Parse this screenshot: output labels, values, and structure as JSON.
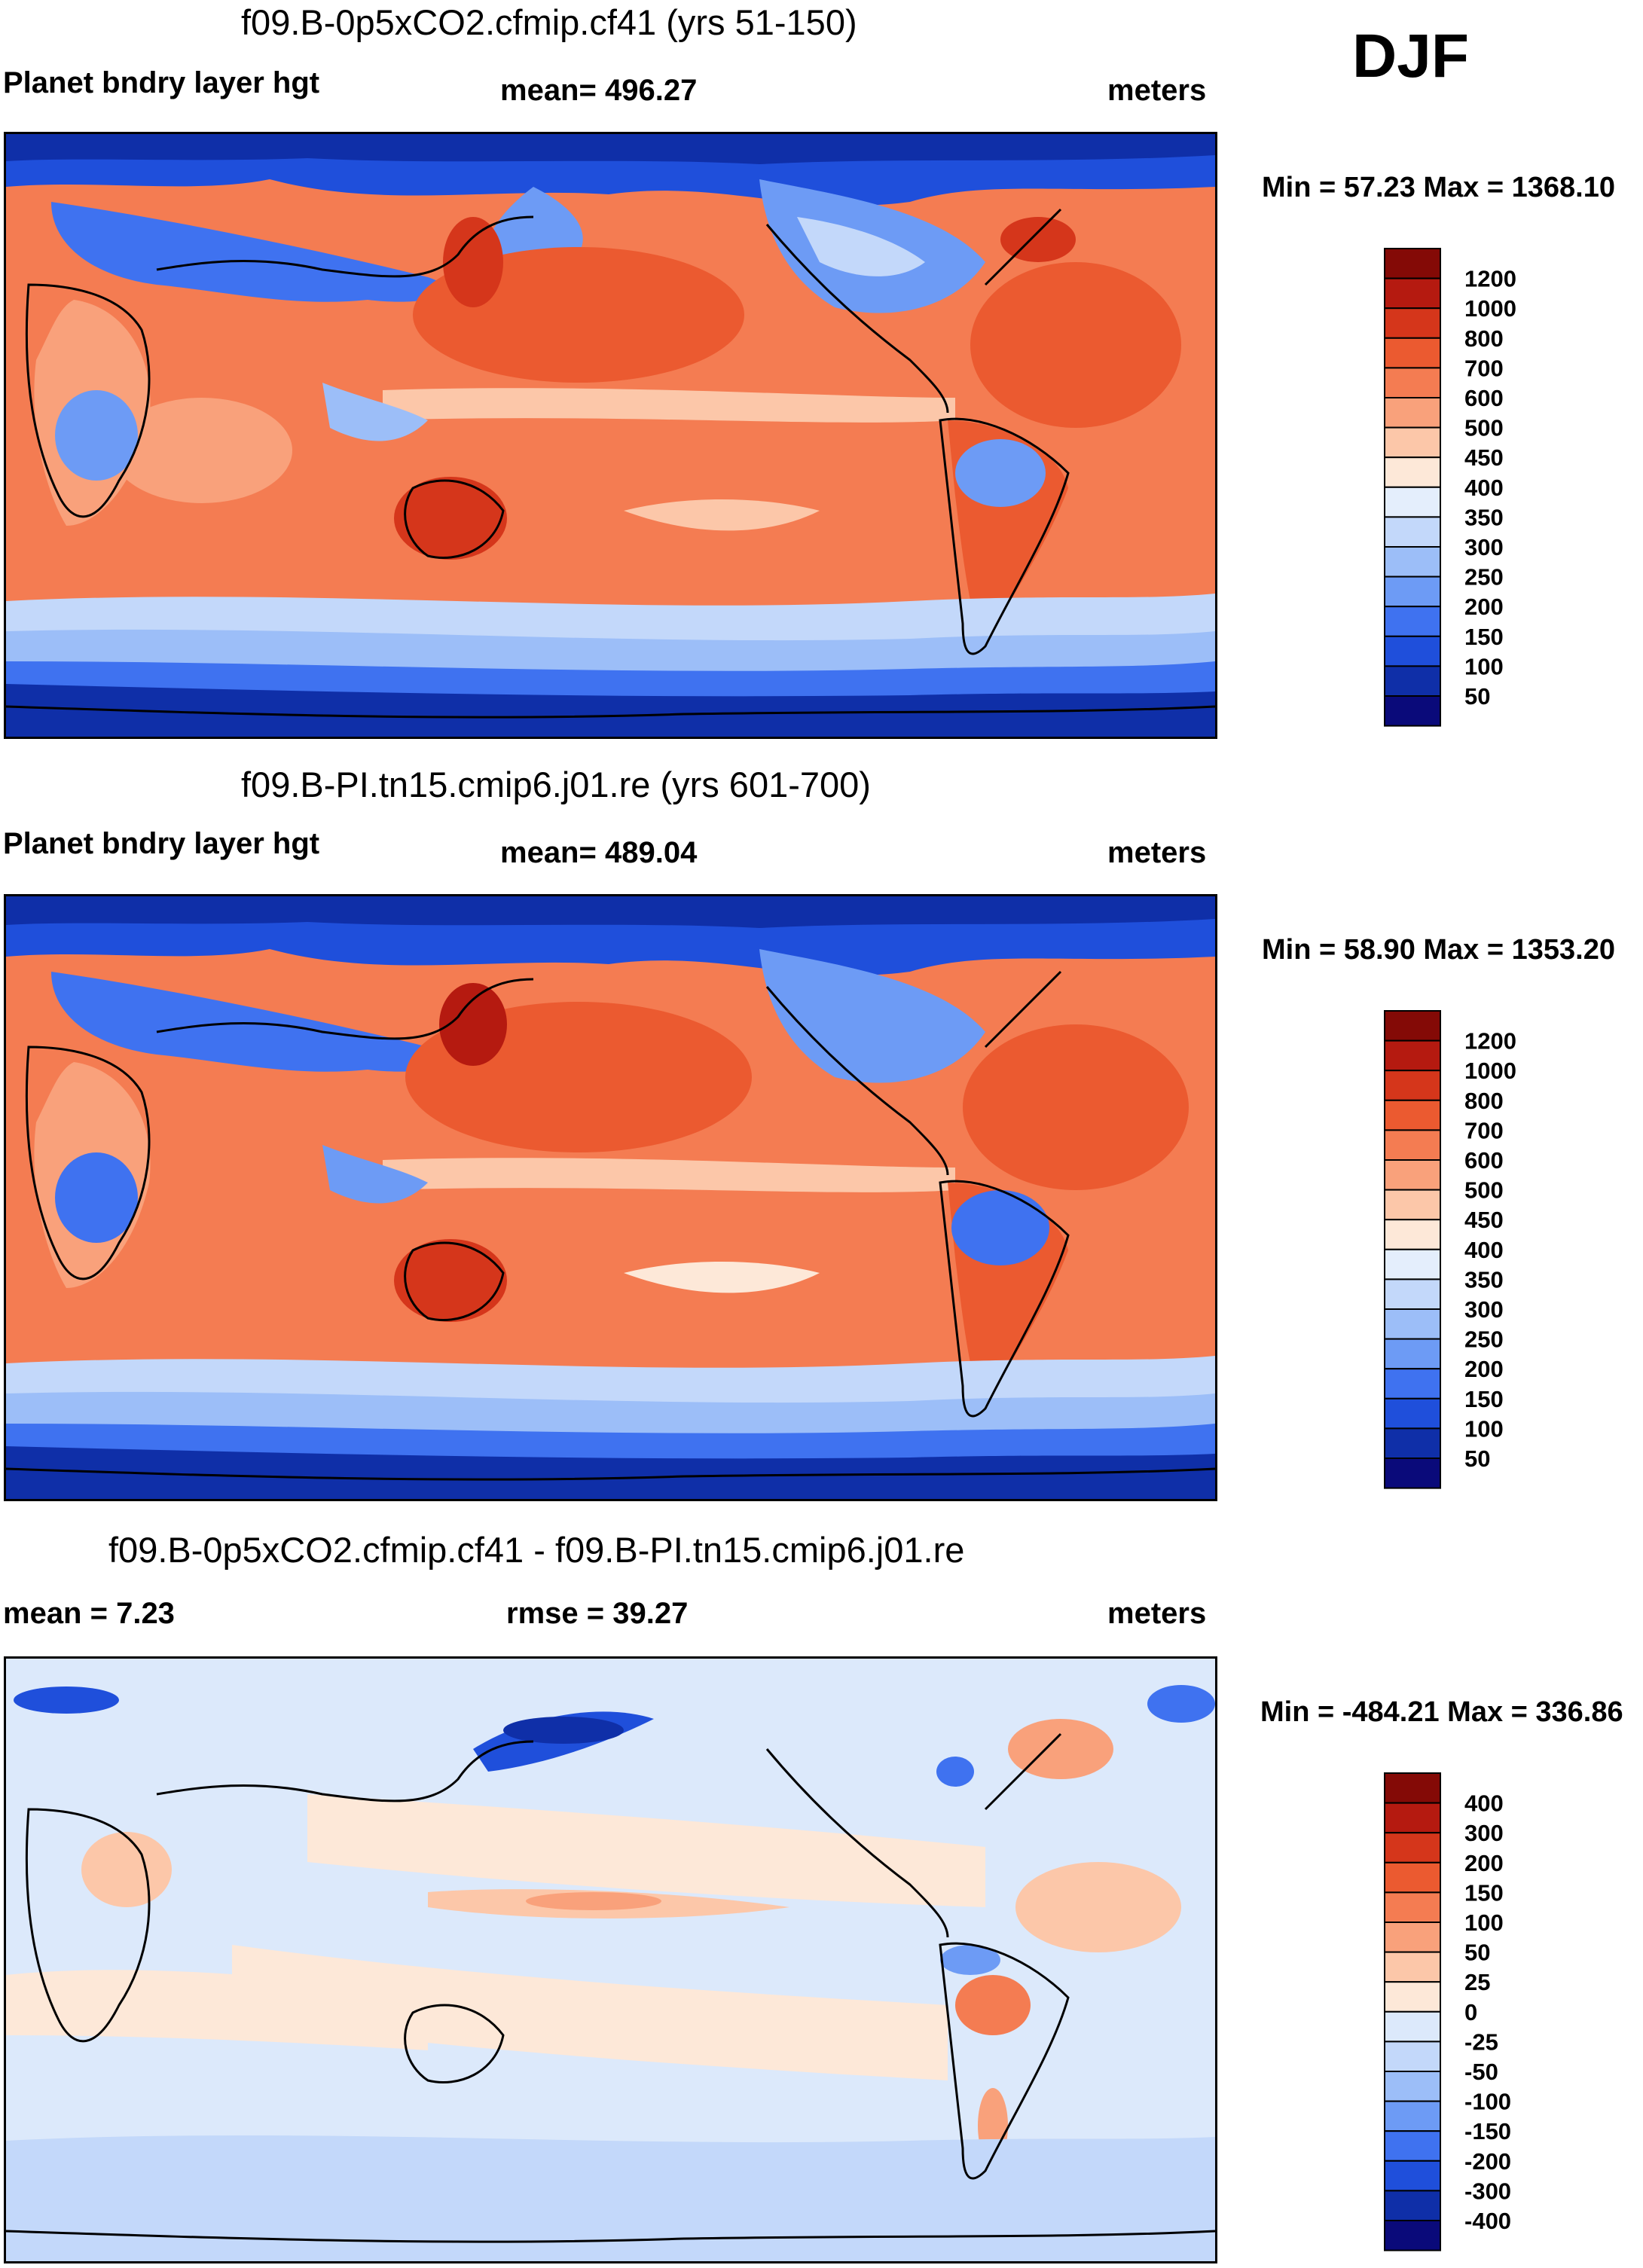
{
  "season": "DJF",
  "palettes": {
    "abs": [
      "#0a0a7a",
      "#0f2fa8",
      "#1f4fdb",
      "#3f72f0",
      "#6d9bf5",
      "#9cbef8",
      "#c3d8fa",
      "#e4eefc",
      "#fde8d8",
      "#fcc7a9",
      "#f9a17b",
      "#f47c52",
      "#eb5a30",
      "#d5361b",
      "#b51a10",
      "#840a06"
    ],
    "diff": [
      "#0a0a7a",
      "#0f2fa8",
      "#1f4fdb",
      "#3f72f0",
      "#6d9bf5",
      "#9cbef8",
      "#c3d8fa",
      "#dce9fb",
      "#fde8d8",
      "#fcc7a9",
      "#f9a17b",
      "#f47c52",
      "#eb5a30",
      "#d5361b",
      "#b51a10",
      "#840a06"
    ]
  },
  "panels": [
    {
      "title": "f09.B-0p5xCO2.cfmip.cf41 (yrs 51-150)",
      "left_label": "Planet bndry layer hgt",
      "center_label": "mean= 496.27",
      "units": "meters",
      "minmax": "Min =  57.23 Max = 1368.10",
      "colorbar": [
        "1200",
        "1000",
        "800",
        "700",
        "600",
        "500",
        "450",
        "400",
        "350",
        "300",
        "250",
        "200",
        "150",
        "100",
        "50"
      ]
    },
    {
      "title": "f09.B-PI.tn15.cmip6.j01.re (yrs 601-700)",
      "left_label": "Planet bndry layer hgt",
      "center_label": "mean= 489.04",
      "units": "meters",
      "minmax": "Min =  58.90 Max = 1353.20",
      "colorbar": [
        "1200",
        "1000",
        "800",
        "700",
        "600",
        "500",
        "450",
        "400",
        "350",
        "300",
        "250",
        "200",
        "150",
        "100",
        "50"
      ]
    },
    {
      "title": "f09.B-0p5xCO2.cfmip.cf41 - f09.B-PI.tn15.cmip6.j01.re",
      "left_label": "mean =   7.23",
      "center_label": "rmse =  39.27",
      "units": "meters",
      "minmax": "Min = -484.21 Max = 336.86",
      "colorbar": [
        "400",
        "300",
        "200",
        "150",
        "100",
        "50",
        "25",
        "0",
        "-25",
        "-50",
        "-100",
        "-150",
        "-200",
        "-300",
        "-400"
      ]
    }
  ]
}
